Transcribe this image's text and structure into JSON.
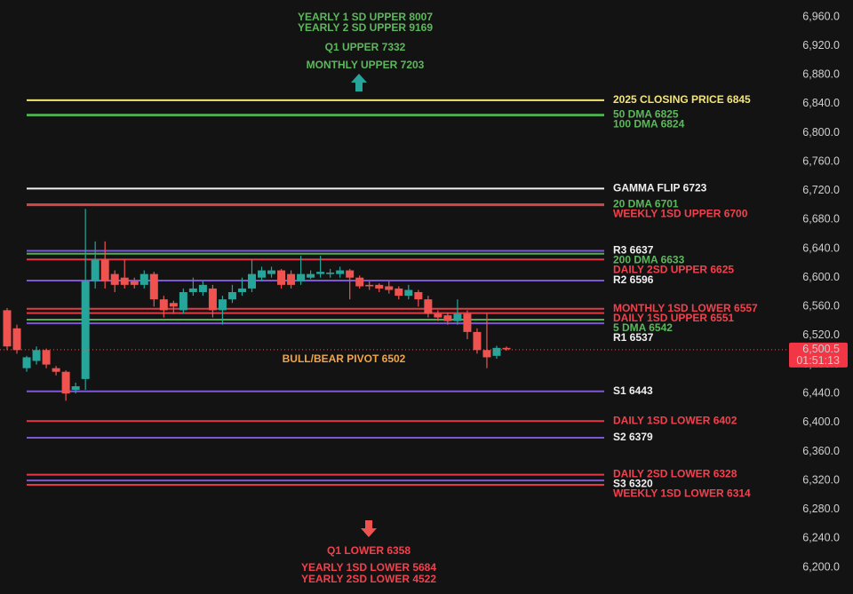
{
  "chart_data": {
    "type": "candlestick",
    "ylim": [
      6180,
      6980
    ],
    "yticks": [
      {
        "value": 6200,
        "label": "6,200.0"
      },
      {
        "value": 6240,
        "label": "6,240.0"
      },
      {
        "value": 6280,
        "label": "6,280.0"
      },
      {
        "value": 6320,
        "label": "6,320.0"
      },
      {
        "value": 6360,
        "label": "6,360.0"
      },
      {
        "value": 6400,
        "label": "6,400.0"
      },
      {
        "value": 6440,
        "label": "6,440.0"
      },
      {
        "value": 6480,
        "label": "6,480.0"
      },
      {
        "value": 6520,
        "label": "6,520.0"
      },
      {
        "value": 6560,
        "label": "6,560.0"
      },
      {
        "value": 6600,
        "label": "6,600.0"
      },
      {
        "value": 6640,
        "label": "6,640.0"
      },
      {
        "value": 6680,
        "label": "6,680.0"
      },
      {
        "value": 6720,
        "label": "6,720.0"
      },
      {
        "value": 6760,
        "label": "6,760.0"
      },
      {
        "value": 6800,
        "label": "6,800.0"
      },
      {
        "value": 6840,
        "label": "6,840.0"
      },
      {
        "value": 6880,
        "label": "6,880.0"
      },
      {
        "value": 6920,
        "label": "6,920.0"
      },
      {
        "value": 6960,
        "label": "6,960.0"
      }
    ],
    "up_color": "#26a69a",
    "down_color": "#ef5350",
    "open": [
      6555,
      6530,
      6475,
      6485,
      6500,
      6475,
      6470,
      6445,
      6460,
      6595,
      6625,
      6605,
      6600,
      6595,
      6590,
      6605,
      6570,
      6565,
      6555,
      6580,
      6580,
      6585,
      6555,
      6570,
      6580,
      6585,
      6600,
      6605,
      6610,
      6605,
      6595,
      6600,
      6605,
      6605,
      6605,
      6610,
      6600,
      6590,
      6590,
      6588,
      6585,
      6575,
      6580,
      6570,
      6550,
      6548,
      6540,
      6550,
      6525,
      6500,
      6492,
      6503
    ],
    "high": [
      6558,
      6535,
      6492,
      6505,
      6502,
      6478,
      6472,
      6455,
      6695,
      6650,
      6650,
      6610,
      6625,
      6600,
      6610,
      6608,
      6575,
      6568,
      6585,
      6600,
      6595,
      6590,
      6575,
      6590,
      6600,
      6625,
      6615,
      6615,
      6612,
      6610,
      6630,
      6610,
      6630,
      6612,
      6615,
      6612,
      6603,
      6595,
      6592,
      6595,
      6588,
      6590,
      6583,
      6575,
      6555,
      6552,
      6570,
      6555,
      6530,
      6550,
      6506,
      6505
    ],
    "low": [
      6500,
      6495,
      6470,
      6480,
      6475,
      6465,
      6430,
      6440,
      6445,
      6585,
      6585,
      6580,
      6585,
      6585,
      6585,
      6560,
      6545,
      6550,
      6550,
      6575,
      6575,
      6545,
      6535,
      6565,
      6575,
      6580,
      6595,
      6600,
      6585,
      6585,
      6590,
      6598,
      6600,
      6600,
      6600,
      6570,
      6585,
      6583,
      6580,
      6578,
      6570,
      6570,
      6560,
      6545,
      6540,
      6535,
      6535,
      6515,
      6495,
      6475,
      6488,
      6499
    ],
    "close": [
      6505,
      6500,
      6490,
      6500,
      6480,
      6470,
      6440,
      6450,
      6595,
      6625,
      6595,
      6590,
      6590,
      6590,
      6605,
      6570,
      6555,
      6560,
      6580,
      6585,
      6590,
      6555,
      6570,
      6580,
      6585,
      6605,
      6610,
      6610,
      6590,
      6590,
      6605,
      6605,
      6608,
      6607,
      6610,
      6600,
      6588,
      6588,
      6585,
      6583,
      6575,
      6583,
      6570,
      6550,
      6545,
      6540,
      6550,
      6525,
      6500,
      6490,
      6503,
      6501
    ],
    "levels": [
      {
        "label": "2025 CLOSING PRICE 6845",
        "value": 6845,
        "color": "#f3e676",
        "label_color": "#f3e676"
      },
      {
        "label": "50 DMA 6825",
        "value": 6825,
        "color": "#4caf50",
        "label_color": "#5cb85c"
      },
      {
        "label": "100 DMA 6824",
        "value": 6824,
        "color": "#4caf50",
        "label_color": "#5cb85c"
      },
      {
        "label": "GAMMA FLIP 6723",
        "value": 6723,
        "color": "#f0f0f0",
        "label_color": "#f0f0f0"
      },
      {
        "label": "20 DMA 6701",
        "value": 6701,
        "color": "#4caf50",
        "label_color": "#5cb85c"
      },
      {
        "label": "WEEKLY 1SD UPPER 6700",
        "value": 6700,
        "color": "#e53945",
        "label_color": "#f2414d"
      },
      {
        "label": "R3 6637",
        "value": 6637,
        "color": "#7e57d6",
        "label_color": "#f0f0f0"
      },
      {
        "label": "200 DMA 6633",
        "value": 6633,
        "color": "#4caf50",
        "label_color": "#5cb85c"
      },
      {
        "label": "DAILY 2SD UPPER 6625",
        "value": 6625,
        "color": "#e53945",
        "label_color": "#f2414d"
      },
      {
        "label": "R2 6596",
        "value": 6596,
        "color": "#7e57d6",
        "label_color": "#f0f0f0"
      },
      {
        "label": "MONTHLY 1SD LOWER 6557",
        "value": 6557,
        "color": "#e53945",
        "label_color": "#f2414d"
      },
      {
        "label": "DAILY 1SD UPPER 6551",
        "value": 6551,
        "color": "#e53945",
        "label_color": "#f2414d"
      },
      {
        "label": "5 DMA 6542",
        "value": 6542,
        "color": "#4caf50",
        "label_color": "#5cb85c"
      },
      {
        "label": "R1 6537",
        "value": 6537,
        "color": "#7e57d6",
        "label_color": "#f0f0f0"
      },
      {
        "label": "S1 6443",
        "value": 6443,
        "color": "#7e57d6",
        "label_color": "#f0f0f0"
      },
      {
        "label": "DAILY 1SD LOWER 6402",
        "value": 6402,
        "color": "#e53945",
        "label_color": "#f2414d"
      },
      {
        "label": "S2 6379",
        "value": 6379,
        "color": "#7e57d6",
        "label_color": "#f0f0f0"
      },
      {
        "label": "DAILY 2SD LOWER 6328",
        "value": 6328,
        "color": "#e53945",
        "label_color": "#f2414d"
      },
      {
        "label": "S3 6320",
        "value": 6320,
        "color": "#7e57d6",
        "label_color": "#f0f0f0"
      },
      {
        "label": "WEEKLY 1SD LOWER 6314",
        "value": 6314,
        "color": "#e53945",
        "label_color": "#f2414d"
      }
    ],
    "pivot": {
      "label": "BULL/BEAR PIVOT 6502",
      "value": 6502
    },
    "current_price": {
      "value": 6500.5,
      "label": "6,500.5",
      "timer": "01:51:13"
    },
    "annotations_top": [
      "YEARLY 1 SD UPPER 8007",
      "YEARLY 2 SD UPPER 9169",
      "Q1 UPPER 7332",
      "MONTHLY UPPER 7203"
    ],
    "annotations_bottom": [
      "Q1 LOWER 6358",
      "YEARLY 1SD LOWER 5684",
      "YEARLY 2SD LOWER 4522"
    ]
  }
}
